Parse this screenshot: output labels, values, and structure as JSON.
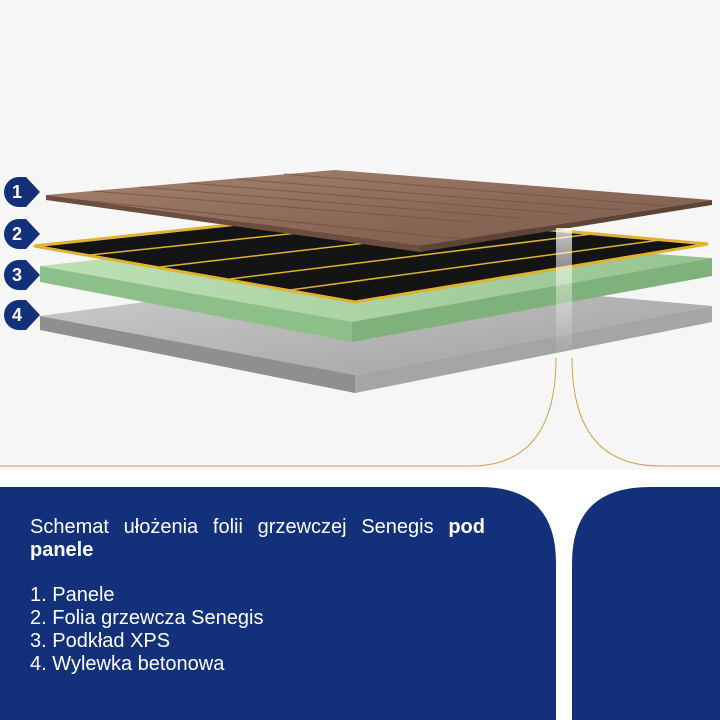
{
  "colors": {
    "navy": "#13307a",
    "gold": "#c9a44a",
    "wood": "#8f6c5a",
    "heating_film": "#111111",
    "xps": "#a7cfa0",
    "concrete": "#b4b4b4"
  },
  "layers": [
    {
      "number": "1"
    },
    {
      "number": "2"
    },
    {
      "number": "3"
    },
    {
      "number": "4"
    }
  ],
  "caption": {
    "title_prefix": "Schemat ułożenia folii grzewczej Senegis ",
    "title_bold": "pod panele",
    "items": [
      "1. Panele",
      "2. Folia grzewcza Senegis",
      "3. Podkład XPS",
      "4. Wylewka betonowa"
    ]
  }
}
